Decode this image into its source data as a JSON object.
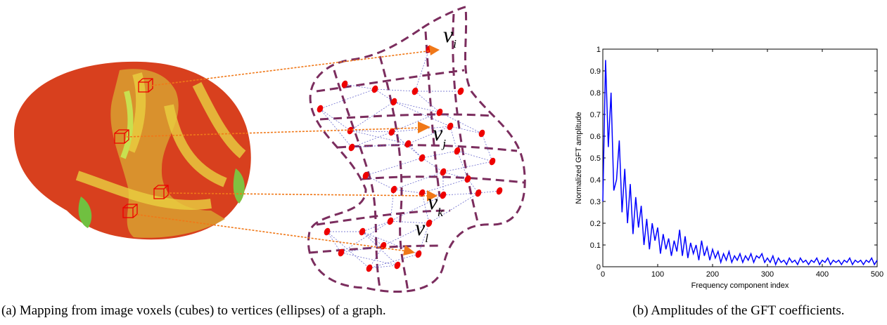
{
  "captions": [
    "(a) Mapping from image voxels (cubes) to vertices (ellipses) of a graph.",
    "(b) Amplitudes of the GFT coefficients."
  ],
  "diagram": {
    "vertex_labels": [
      {
        "base": "v",
        "sub": "i"
      },
      {
        "base": "v",
        "sub": "j"
      },
      {
        "base": "v",
        "sub": "k"
      },
      {
        "base": "v",
        "sub": "l"
      }
    ]
  },
  "chart_data": {
    "type": "line",
    "xlabel": "Frequency component index",
    "ylabel": "Normalized GFT amplitude",
    "x": [
      0,
      5,
      10,
      15,
      20,
      25,
      30,
      35,
      40,
      45,
      50,
      55,
      60,
      65,
      70,
      75,
      80,
      85,
      90,
      95,
      100,
      105,
      110,
      115,
      120,
      125,
      130,
      135,
      140,
      145,
      150,
      155,
      160,
      165,
      170,
      175,
      180,
      185,
      190,
      195,
      200,
      205,
      210,
      215,
      220,
      225,
      230,
      235,
      240,
      245,
      250,
      255,
      260,
      265,
      270,
      275,
      280,
      285,
      290,
      295,
      300,
      305,
      310,
      315,
      320,
      325,
      330,
      335,
      340,
      345,
      350,
      355,
      360,
      365,
      370,
      375,
      380,
      385,
      390,
      395,
      400,
      405,
      410,
      415,
      420,
      425,
      430,
      435,
      440,
      445,
      450,
      455,
      460,
      465,
      470,
      475,
      480,
      485,
      490,
      495,
      500
    ],
    "series": [
      {
        "color": "#0000ff",
        "values": [
          0.3,
          0.95,
          0.55,
          0.8,
          0.35,
          0.4,
          0.58,
          0.25,
          0.45,
          0.2,
          0.38,
          0.15,
          0.32,
          0.18,
          0.28,
          0.1,
          0.22,
          0.08,
          0.2,
          0.12,
          0.18,
          0.06,
          0.15,
          0.08,
          0.13,
          0.05,
          0.12,
          0.07,
          0.17,
          0.05,
          0.14,
          0.04,
          0.11,
          0.06,
          0.1,
          0.03,
          0.12,
          0.05,
          0.09,
          0.03,
          0.08,
          0.04,
          0.07,
          0.02,
          0.06,
          0.03,
          0.07,
          0.02,
          0.05,
          0.03,
          0.06,
          0.02,
          0.05,
          0.03,
          0.06,
          0.02,
          0.05,
          0.04,
          0.06,
          0.02,
          0.04,
          0.02,
          0.05,
          0.01,
          0.04,
          0.02,
          0.03,
          0.01,
          0.04,
          0.02,
          0.03,
          0.01,
          0.04,
          0.02,
          0.03,
          0.01,
          0.03,
          0.02,
          0.04,
          0.01,
          0.03,
          0.02,
          0.04,
          0.01,
          0.03,
          0.02,
          0.03,
          0.01,
          0.03,
          0.02,
          0.04,
          0.01,
          0.03,
          0.02,
          0.03,
          0.01,
          0.03,
          0.02,
          0.04,
          0.01,
          0.03
        ]
      }
    ],
    "xlim": [
      0,
      500
    ],
    "xticks": [
      0,
      100,
      200,
      300,
      400,
      500
    ],
    "ylim": [
      0,
      1
    ],
    "yticks": [
      0,
      0.1,
      0.2,
      0.3,
      0.4,
      0.5,
      0.6,
      0.7,
      0.8,
      0.9,
      1
    ]
  }
}
